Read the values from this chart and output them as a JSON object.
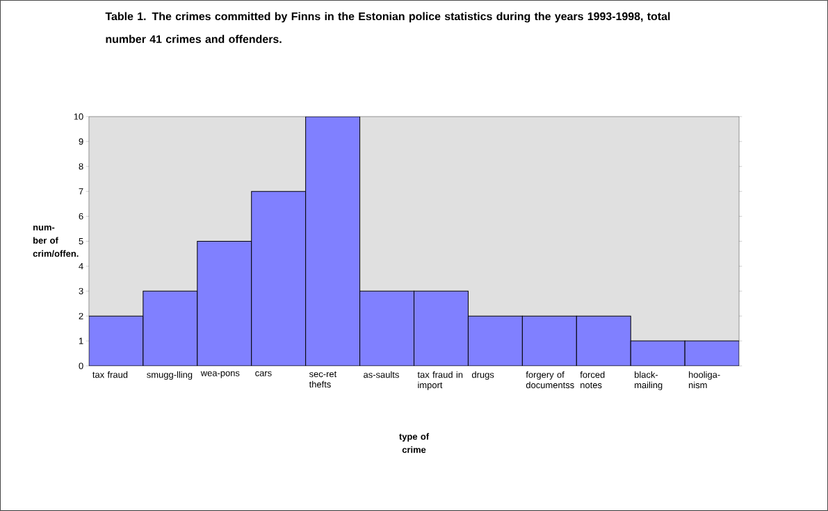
{
  "chart_data": {
    "type": "bar",
    "title": "Table 1. The crimes committed by Finns in the Estonian police statistics during the years 1993-1998, total number 41 crimes and offenders.",
    "xlabel": "type of crime",
    "ylabel": "num-ber of crim/offen.",
    "categories": [
      "tax fraud",
      "smugg-lling",
      "wea-pons",
      "cars",
      "sec-ret thefts",
      "as-saults",
      "tax fraud in import",
      "drugs",
      "forgery of documentss",
      "forced notes",
      "black-mailing",
      "hooliga-nism"
    ],
    "values": [
      2,
      3,
      5,
      7,
      10,
      3,
      3,
      2,
      2,
      2,
      1,
      1
    ],
    "color": "#8080ff",
    "ylim": [
      0,
      10
    ],
    "yticks": [
      0,
      1,
      2,
      3,
      4,
      5,
      6,
      7,
      8,
      9,
      10
    ],
    "grid": false
  }
}
